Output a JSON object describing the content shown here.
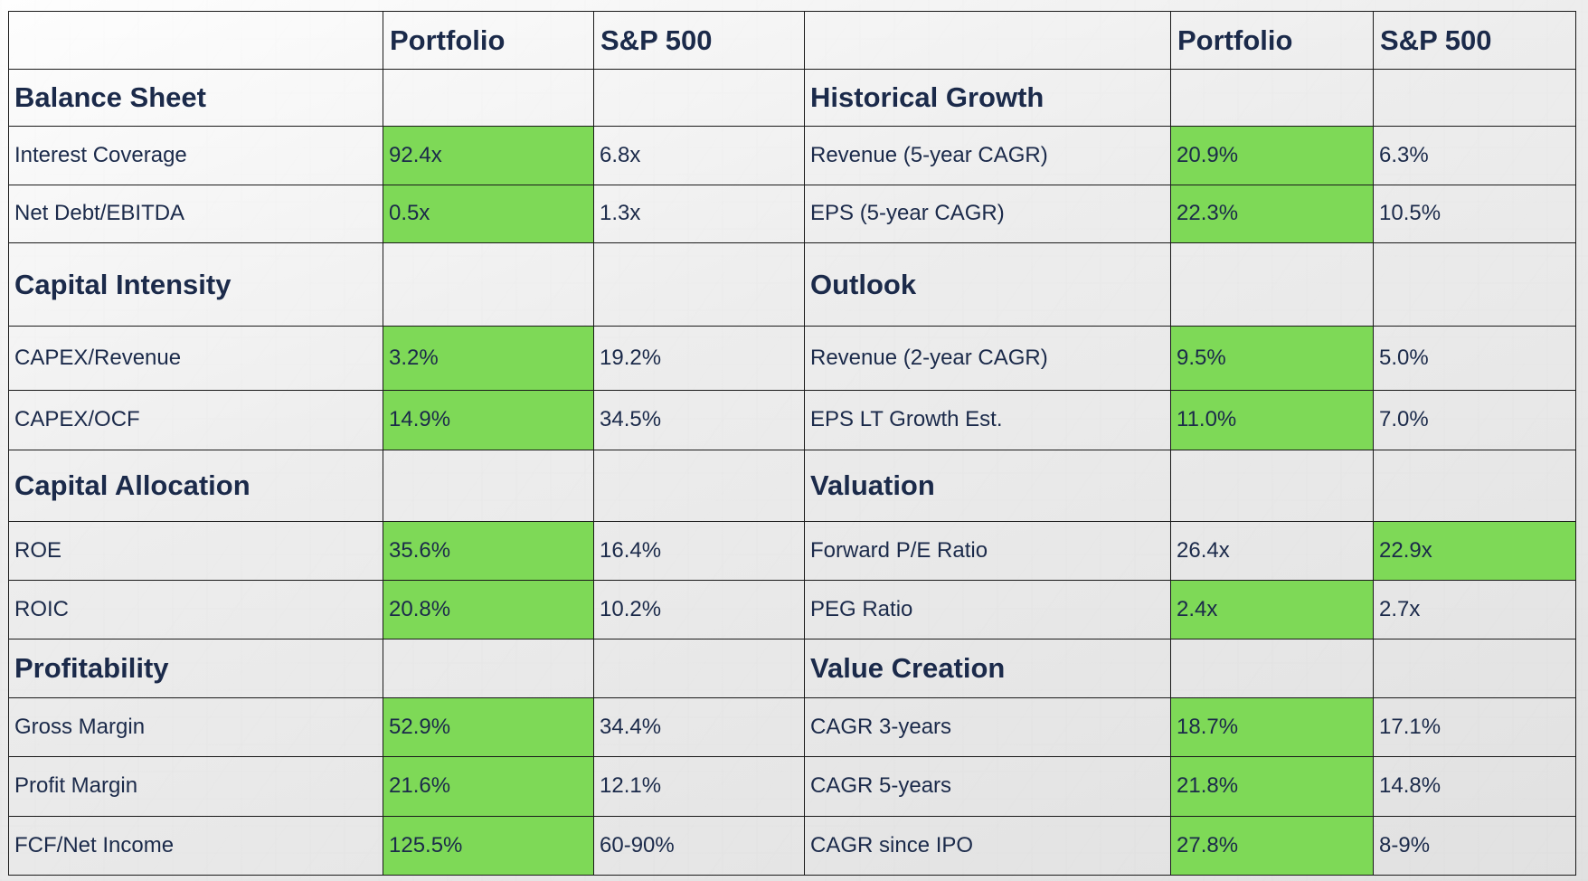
{
  "columns": {
    "portfolio": "Portfolio",
    "sp500": "S&P 500"
  },
  "colors": {
    "highlight": "#7ed957",
    "text": "#1b2a4a",
    "grid": "#1a1a1a"
  },
  "rows": [
    {
      "type": "section",
      "left": "Balance Sheet",
      "right": "Historical Growth"
    },
    {
      "type": "data",
      "left": {
        "label": "Interest Coverage",
        "portfolio": "92.4x",
        "sp500": "6.8x",
        "highlight": "portfolio"
      },
      "right": {
        "label": "Revenue (5-year CAGR)",
        "portfolio": "20.9%",
        "sp500": "6.3%",
        "highlight": "portfolio"
      }
    },
    {
      "type": "data",
      "left": {
        "label": "Net Debt/EBITDA",
        "portfolio": "0.5x",
        "sp500": "1.3x",
        "highlight": "portfolio"
      },
      "right": {
        "label": "EPS (5-year CAGR)",
        "portfolio": "22.3%",
        "sp500": "10.5%",
        "highlight": "portfolio"
      }
    },
    {
      "type": "section",
      "left": "Capital Intensity",
      "right": "Outlook"
    },
    {
      "type": "data",
      "left": {
        "label": "CAPEX/Revenue",
        "portfolio": "3.2%",
        "sp500": "19.2%",
        "highlight": "portfolio"
      },
      "right": {
        "label": "Revenue (2-year CAGR)",
        "portfolio": "9.5%",
        "sp500": "5.0%",
        "highlight": "portfolio"
      }
    },
    {
      "type": "data",
      "left": {
        "label": "CAPEX/OCF",
        "portfolio": "14.9%",
        "sp500": "34.5%",
        "highlight": "portfolio"
      },
      "right": {
        "label": "EPS LT Growth Est.",
        "portfolio": "11.0%",
        "sp500": "7.0%",
        "highlight": "portfolio"
      }
    },
    {
      "type": "section",
      "left": "Capital Allocation",
      "right": "Valuation"
    },
    {
      "type": "data",
      "left": {
        "label": "ROE",
        "portfolio": "35.6%",
        "sp500": "16.4%",
        "highlight": "portfolio"
      },
      "right": {
        "label": "Forward P/E Ratio",
        "portfolio": "26.4x",
        "sp500": "22.9x",
        "highlight": "sp500"
      }
    },
    {
      "type": "data",
      "left": {
        "label": "ROIC",
        "portfolio": "20.8%",
        "sp500": "10.2%",
        "highlight": "portfolio"
      },
      "right": {
        "label": "PEG Ratio",
        "portfolio": "2.4x",
        "sp500": "2.7x",
        "highlight": "portfolio"
      }
    },
    {
      "type": "section",
      "left": "Profitability",
      "right": "Value Creation"
    },
    {
      "type": "data",
      "left": {
        "label": "Gross Margin",
        "portfolio": "52.9%",
        "sp500": "34.4%",
        "highlight": "portfolio"
      },
      "right": {
        "label": "CAGR 3-years",
        "portfolio": "18.7%",
        "sp500": "17.1%",
        "highlight": "portfolio"
      }
    },
    {
      "type": "data",
      "left": {
        "label": "Profit Margin",
        "portfolio": "21.6%",
        "sp500": "12.1%",
        "highlight": "portfolio"
      },
      "right": {
        "label": "CAGR 5-years",
        "portfolio": "21.8%",
        "sp500": "14.8%",
        "highlight": "portfolio"
      }
    },
    {
      "type": "data",
      "left": {
        "label": "FCF/Net Income",
        "portfolio": "125.5%",
        "sp500": "60-90%",
        "highlight": "portfolio"
      },
      "right": {
        "label": "CAGR since IPO",
        "portfolio": "27.8%",
        "sp500": "8-9%",
        "highlight": "portfolio"
      }
    }
  ]
}
